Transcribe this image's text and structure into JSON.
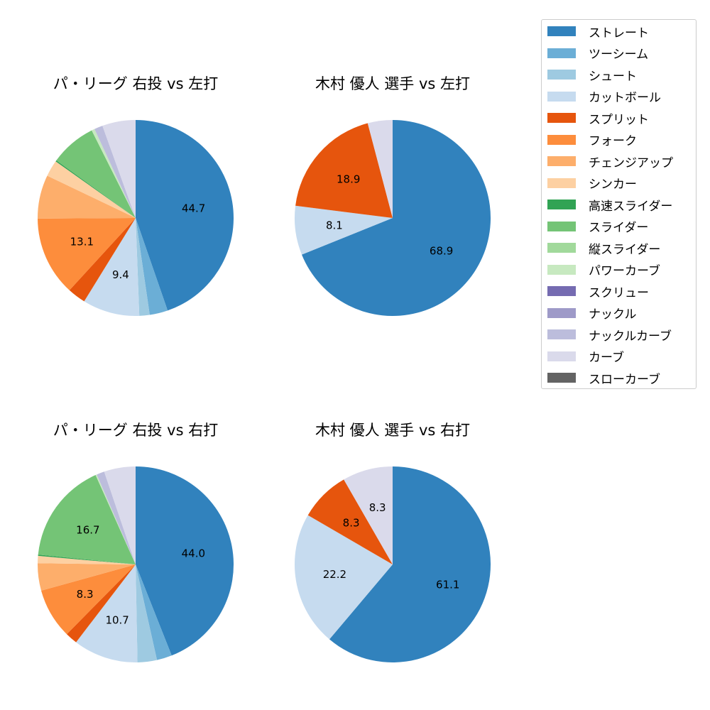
{
  "legend": {
    "placement": "right",
    "items": [
      {
        "label": "ストレート",
        "color": "#3182bd"
      },
      {
        "label": "ツーシーム",
        "color": "#6baed6"
      },
      {
        "label": "シュート",
        "color": "#9ecae1"
      },
      {
        "label": "カットボール",
        "color": "#c6dbef"
      },
      {
        "label": "スプリット",
        "color": "#e6550d"
      },
      {
        "label": "フォーク",
        "color": "#fd8d3c"
      },
      {
        "label": "チェンジアップ",
        "color": "#fdae6b"
      },
      {
        "label": "シンカー",
        "color": "#fdd0a2"
      },
      {
        "label": "高速スライダー",
        "color": "#31a354"
      },
      {
        "label": "スライダー",
        "color": "#74c476"
      },
      {
        "label": "縦スライダー",
        "color": "#a1d99b"
      },
      {
        "label": "パワーカーブ",
        "color": "#c7e9c0"
      },
      {
        "label": "スクリュー",
        "color": "#756bb1"
      },
      {
        "label": "ナックル",
        "color": "#9e9ac8"
      },
      {
        "label": "ナックルカーブ",
        "color": "#bcbddc"
      },
      {
        "label": "カーブ",
        "color": "#dadaeb"
      },
      {
        "label": "スローカーブ",
        "color": "#636363"
      }
    ]
  },
  "chart_data": [
    {
      "type": "pie",
      "title": "パ・リーグ 右投 vs 左打",
      "categories": [
        "ストレート",
        "ツーシーム",
        "シュート",
        "カットボール",
        "スプリット",
        "フォーク",
        "チェンジアップ",
        "シンカー",
        "高速スライダー",
        "スライダー",
        "縦スライダー",
        "パワーカーブ",
        "スクリュー",
        "ナックル",
        "ナックルカーブ",
        "カーブ",
        "スローカーブ"
      ],
      "values": [
        44.7,
        3.0,
        1.7,
        9.4,
        3.0,
        13.1,
        7.2,
        2.7,
        0.2,
        7.6,
        0,
        0.5,
        0,
        0,
        1.4,
        5.5,
        0
      ]
    },
    {
      "type": "pie",
      "title": "木村 優人 選手 vs 左打",
      "categories": [
        "ストレート",
        "カットボール",
        "スプリット",
        "カーブ"
      ],
      "values": [
        68.9,
        8.1,
        18.9,
        4.1
      ]
    },
    {
      "type": "pie",
      "title": "パ・リーグ 右投 vs 右打",
      "categories": [
        "ストレート",
        "ツーシーム",
        "シュート",
        "カットボール",
        "スプリット",
        "フォーク",
        "チェンジアップ",
        "シンカー",
        "高速スライダー",
        "スライダー",
        "縦スライダー",
        "パワーカーブ",
        "スクリュー",
        "ナックル",
        "ナックルカーブ",
        "カーブ",
        "スローカーブ"
      ],
      "values": [
        44.0,
        2.5,
        3.2,
        10.7,
        2.0,
        8.3,
        4.5,
        1.2,
        0.2,
        16.7,
        0,
        0.2,
        0,
        0,
        1.3,
        5.2,
        0
      ]
    },
    {
      "type": "pie",
      "title": "木村 優人 選手 vs 右打",
      "categories": [
        "ストレート",
        "カットボール",
        "スプリット",
        "カーブ"
      ],
      "values": [
        61.1,
        22.2,
        8.3,
        8.3
      ]
    }
  ]
}
